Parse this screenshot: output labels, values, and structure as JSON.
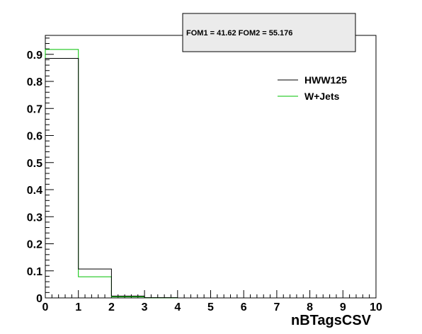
{
  "chart_data": {
    "type": "histogram",
    "xlabel": "nBTagsCSV",
    "ylabel": "",
    "xlim": [
      0,
      10
    ],
    "ylim": [
      0,
      1.0
    ],
    "bin_edges": [
      0,
      1,
      2,
      3,
      4,
      5,
      6,
      7,
      8,
      9,
      10
    ],
    "x_ticks": [
      "0",
      "1",
      "2",
      "3",
      "4",
      "5",
      "6",
      "7",
      "8",
      "9",
      "10"
    ],
    "y_ticks": [
      "0",
      "0.1",
      "0.2",
      "0.3",
      "0.4",
      "0.5",
      "0.6",
      "0.7",
      "0.8",
      "0.9"
    ],
    "y_tick_values": [
      0,
      0.1,
      0.2,
      0.3,
      0.4,
      0.5,
      0.6,
      0.7,
      0.8,
      0.9
    ],
    "series": [
      {
        "name": "HWW125",
        "color": "#000000",
        "values": [
          0.885,
          0.107,
          0.007,
          0.001,
          0,
          0,
          0,
          0,
          0,
          0
        ]
      },
      {
        "name": "W+Jets",
        "color": "#00c000",
        "values": [
          0.918,
          0.078,
          0.004,
          0.0005,
          0,
          0,
          0,
          0,
          0,
          0
        ]
      }
    ],
    "annotation": "FOM1 = 41.62 FOM2 = 55.176",
    "grid": false,
    "legend_position": "top-right"
  }
}
